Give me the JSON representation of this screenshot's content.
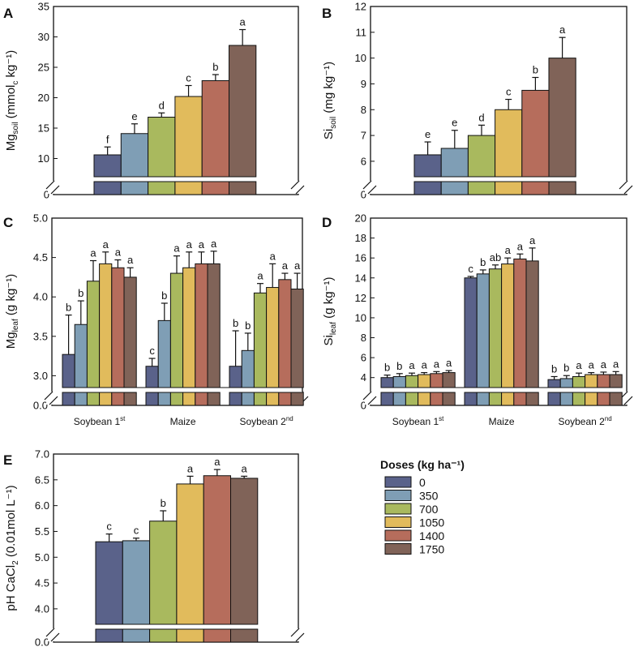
{
  "colors": [
    "#5a628a",
    "#7f9eb5",
    "#a9b95e",
    "#e1bb5c",
    "#b66d5c",
    "#806358"
  ],
  "legend": {
    "title": "Doses (kg ha⁻¹)",
    "labels": [
      "0",
      "350",
      "700",
      "1050",
      "1400",
      "1750"
    ]
  },
  "chart_data": [
    {
      "id": "A",
      "type": "bar",
      "letter": "A",
      "ylabel": "Mgsoil (mmolc kg⁻¹)",
      "ylabel_parts": [
        [
          "Mg",
          ""
        ],
        [
          "soil",
          "sub"
        ],
        [
          " (mmol",
          ""
        ],
        [
          "c",
          "sub"
        ],
        [
          " kg⁻¹)",
          ""
        ]
      ],
      "ylim": [
        7,
        35
      ],
      "ticks": [
        10,
        15,
        20,
        25,
        30,
        35
      ],
      "break_tick": "0",
      "groups": [
        {
          "label": "",
          "values": [
            10.6,
            14.1,
            16.8,
            20.2,
            22.8,
            28.6
          ],
          "errors": [
            1.3,
            1.6,
            0.7,
            1.8,
            1.0,
            2.6
          ],
          "letters": [
            "f",
            "e",
            "d",
            "c",
            "b",
            "a"
          ]
        }
      ]
    },
    {
      "id": "B",
      "type": "bar",
      "letter": "B",
      "ylabel": "Sisoil (mg kg⁻¹)",
      "ylabel_parts": [
        [
          "Si",
          ""
        ],
        [
          "soil",
          "sub"
        ],
        [
          " (mg kg⁻¹)",
          ""
        ]
      ],
      "ylim": [
        5.4,
        12
      ],
      "ticks": [
        6,
        7,
        8,
        9,
        10,
        11,
        12
      ],
      "break_tick": "0",
      "groups": [
        {
          "label": "",
          "values": [
            6.25,
            6.5,
            7.0,
            8.0,
            8.75,
            10.0
          ],
          "errors": [
            0.5,
            0.7,
            0.4,
            0.4,
            0.5,
            0.8
          ],
          "letters": [
            "e",
            "e",
            "d",
            "c",
            "b",
            "a"
          ]
        }
      ]
    },
    {
      "id": "C",
      "type": "bar",
      "letter": "C",
      "ylabel": "Mgleaf (g kg⁻¹)",
      "ylabel_parts": [
        [
          "Mg",
          ""
        ],
        [
          "leaf",
          "sub"
        ],
        [
          " (g kg⁻¹)",
          ""
        ]
      ],
      "ylim": [
        2.85,
        5.0
      ],
      "ticks": [
        3.0,
        3.5,
        4.0,
        4.5,
        5.0
      ],
      "tick_decimals": 1,
      "break_tick": "0.0",
      "groups": [
        {
          "label": "Soybean 1",
          "label_sup": "st",
          "values": [
            3.27,
            3.65,
            4.2,
            4.42,
            4.37,
            4.25
          ],
          "errors": [
            0.5,
            0.3,
            0.26,
            0.15,
            0.1,
            0.12
          ],
          "letters": [
            "b",
            "b",
            "a",
            "a",
            "a",
            "a"
          ]
        },
        {
          "label": "Maize",
          "label_sup": "",
          "values": [
            3.12,
            3.7,
            4.3,
            4.37,
            4.42,
            4.42
          ],
          "errors": [
            0.1,
            0.22,
            0.22,
            0.2,
            0.15,
            0.16
          ],
          "letters": [
            "c",
            "b",
            "a",
            "a",
            "a",
            "a"
          ]
        },
        {
          "label": "Soybean 2",
          "label_sup": "nd",
          "values": [
            3.12,
            3.32,
            4.05,
            4.12,
            4.22,
            4.1
          ],
          "errors": [
            0.45,
            0.22,
            0.12,
            0.3,
            0.08,
            0.2
          ],
          "letters": [
            "b",
            "b",
            "a",
            "a",
            "a",
            "a"
          ]
        }
      ]
    },
    {
      "id": "D",
      "type": "bar",
      "letter": "D",
      "ylabel": "Sileaf (g kg⁻¹)",
      "ylabel_parts": [
        [
          "Si",
          ""
        ],
        [
          "leaf",
          "sub"
        ],
        [
          " (g kg⁻¹)",
          ""
        ]
      ],
      "ylim": [
        3,
        20
      ],
      "ticks": [
        4,
        6,
        8,
        10,
        12,
        14,
        16,
        18,
        20
      ],
      "break_tick": "0",
      "groups": [
        {
          "label": "Soybean 1",
          "label_sup": "st",
          "values": [
            4.0,
            4.1,
            4.2,
            4.3,
            4.4,
            4.5
          ],
          "errors": [
            0.25,
            0.3,
            0.25,
            0.2,
            0.2,
            0.2
          ],
          "letters": [
            "b",
            "b",
            "a",
            "a",
            "a",
            "a"
          ]
        },
        {
          "label": "Maize",
          "label_sup": "",
          "values": [
            14.0,
            14.4,
            14.9,
            15.4,
            15.9,
            15.7
          ],
          "errors": [
            0.15,
            0.4,
            0.4,
            0.6,
            0.5,
            1.3
          ],
          "letters": [
            "c",
            "b",
            "ab",
            "a",
            "a",
            "a"
          ]
        },
        {
          "label": "Soybean 2",
          "label_sup": "nd",
          "values": [
            3.8,
            3.9,
            4.1,
            4.3,
            4.3,
            4.3
          ],
          "errors": [
            0.3,
            0.3,
            0.35,
            0.2,
            0.25,
            0.3
          ],
          "letters": [
            "b",
            "b",
            "a",
            "a",
            "a",
            "a"
          ]
        }
      ]
    },
    {
      "id": "E",
      "type": "bar",
      "letter": "E",
      "ylabel": "pH CaCl2 (0.01mol L⁻¹)",
      "ylabel_parts": [
        [
          "pH CaCl",
          ""
        ],
        [
          "2",
          "sub"
        ],
        [
          " (0.01mol L⁻¹)",
          ""
        ]
      ],
      "ylim": [
        3.7,
        7.0
      ],
      "ticks": [
        4.0,
        4.5,
        5.0,
        5.5,
        6.0,
        6.5,
        7.0
      ],
      "tick_decimals": 1,
      "break_tick": "0.0",
      "groups": [
        {
          "label": "",
          "values": [
            5.3,
            5.32,
            5.7,
            6.42,
            6.58,
            6.53
          ],
          "errors": [
            0.15,
            0.05,
            0.2,
            0.15,
            0.12,
            0.04
          ],
          "letters": [
            "c",
            "c",
            "b",
            "a",
            "a",
            "a"
          ]
        }
      ]
    }
  ]
}
